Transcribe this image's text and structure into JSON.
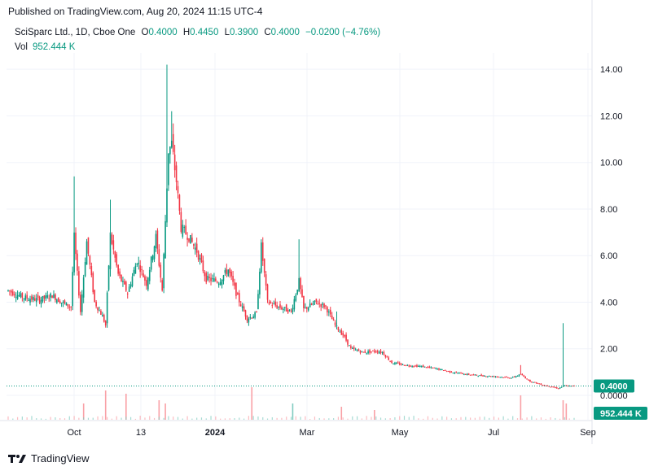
{
  "header": {
    "published": "Published on TradingView.com, Aug 20, 2024 11:15 UTC-4"
  },
  "legend": {
    "symbol": "SciSparc Ltd., 1D, Cboe One",
    "open_label": "O",
    "open": "0.4000",
    "high_label": "H",
    "high": "0.4450",
    "low_label": "L",
    "low": "0.3900",
    "close_label": "C",
    "close": "0.4000",
    "change": "−0.0200 (−4.76%)",
    "vol_label": "Vol",
    "vol": "952.444 K"
  },
  "footer": {
    "brand": "TradingView"
  },
  "colors": {
    "up": "#089981",
    "down": "#f23645",
    "up_vol": "#80ccc0",
    "down_vol": "#f9a0a6",
    "grid": "#f0f3fa"
  },
  "chart_data": {
    "type": "candlestick",
    "y_ticks": [
      "14.00",
      "12.00",
      "10.00",
      "8.00",
      "6.00",
      "4.00",
      "2.00",
      "0.0000"
    ],
    "ylim": [
      0,
      14.6
    ],
    "x_ticks": [
      "Oct",
      "13",
      "2024",
      "Mar",
      "May",
      "Jul",
      "Sep"
    ],
    "last_price_label": "0.4000",
    "volume_label": "952.444 K",
    "series": [
      {
        "name": "",
        "anchors": [
          {
            "t": 0,
            "c": 4.5
          },
          {
            "t": 10,
            "c": 4.2
          },
          {
            "t": 20,
            "c": 4.1
          },
          {
            "t": 28,
            "c": 4.3
          },
          {
            "t": 34,
            "c": 4.0
          },
          {
            "t": 40,
            "c": 3.8
          },
          {
            "t": 42,
            "c": 6.8
          },
          {
            "t": 46,
            "c": 3.6
          },
          {
            "t": 50,
            "c": 6.6
          },
          {
            "t": 55,
            "c": 4.0
          },
          {
            "t": 60,
            "c": 3.4
          },
          {
            "t": 62,
            "c": 3.0
          },
          {
            "t": 65,
            "c": 6.9
          },
          {
            "t": 70,
            "c": 5.2
          },
          {
            "t": 76,
            "c": 4.4
          },
          {
            "t": 82,
            "c": 5.8
          },
          {
            "t": 88,
            "c": 4.8
          },
          {
            "t": 94,
            "c": 6.8
          },
          {
            "t": 98,
            "c": 4.5
          },
          {
            "t": 102,
            "c": 10.5
          },
          {
            "t": 104,
            "c": 10.8
          },
          {
            "t": 107,
            "c": 9.2
          },
          {
            "t": 110,
            "c": 7.2
          },
          {
            "t": 115,
            "c": 6.8
          },
          {
            "t": 120,
            "c": 6.2
          },
          {
            "t": 126,
            "c": 5.0
          },
          {
            "t": 134,
            "c": 4.9
          },
          {
            "t": 140,
            "c": 5.4
          },
          {
            "t": 146,
            "c": 4.2
          },
          {
            "t": 152,
            "c": 3.3
          },
          {
            "t": 158,
            "c": 3.5
          },
          {
            "t": 161,
            "c": 6.4
          },
          {
            "t": 165,
            "c": 4.0
          },
          {
            "t": 172,
            "c": 3.8
          },
          {
            "t": 180,
            "c": 3.6
          },
          {
            "t": 185,
            "c": 4.9
          },
          {
            "t": 188,
            "c": 3.7
          },
          {
            "t": 196,
            "c": 4.0
          },
          {
            "t": 202,
            "c": 3.8
          },
          {
            "t": 208,
            "c": 3.0
          },
          {
            "t": 213,
            "c": 2.6
          },
          {
            "t": 218,
            "c": 2.0
          },
          {
            "t": 226,
            "c": 1.85
          },
          {
            "t": 234,
            "c": 1.9
          },
          {
            "t": 238,
            "c": 1.85
          },
          {
            "t": 244,
            "c": 1.4
          },
          {
            "t": 252,
            "c": 1.3
          },
          {
            "t": 262,
            "c": 1.25
          },
          {
            "t": 272,
            "c": 1.15
          },
          {
            "t": 282,
            "c": 1.0
          },
          {
            "t": 292,
            "c": 0.9
          },
          {
            "t": 300,
            "c": 0.85
          },
          {
            "t": 312,
            "c": 0.8
          },
          {
            "t": 320,
            "c": 0.75
          },
          {
            "t": 326,
            "c": 0.9
          },
          {
            "t": 332,
            "c": 0.6
          },
          {
            "t": 340,
            "c": 0.45
          },
          {
            "t": 350,
            "c": 0.3
          },
          {
            "t": 354,
            "c": 0.42
          },
          {
            "t": 358,
            "c": 0.4
          }
        ]
      }
    ],
    "spikes": [
      {
        "t": 42,
        "h": 9.4
      },
      {
        "t": 65,
        "h": 8.4
      },
      {
        "t": 101,
        "h": 14.2
      },
      {
        "t": 104,
        "h": 12.2
      },
      {
        "t": 161,
        "h": 6.7
      },
      {
        "t": 185,
        "h": 6.7
      },
      {
        "t": 209,
        "h": 3.6
      },
      {
        "t": 326,
        "h": 1.3
      },
      {
        "t": 353,
        "h": 3.1
      }
    ],
    "volume_spikes": [
      {
        "t": 48,
        "v": 0.5
      },
      {
        "t": 62,
        "v": 0.9
      },
      {
        "t": 75,
        "v": 0.8
      },
      {
        "t": 96,
        "v": 0.6
      },
      {
        "t": 100,
        "v": 0.5
      },
      {
        "t": 155,
        "v": 1.0
      },
      {
        "t": 181,
        "v": 0.5
      },
      {
        "t": 212,
        "v": 0.4
      },
      {
        "t": 233,
        "v": 0.3
      },
      {
        "t": 326,
        "v": 0.75
      },
      {
        "t": 353,
        "v": 0.6
      },
      {
        "t": 355,
        "v": 0.5
      }
    ]
  }
}
